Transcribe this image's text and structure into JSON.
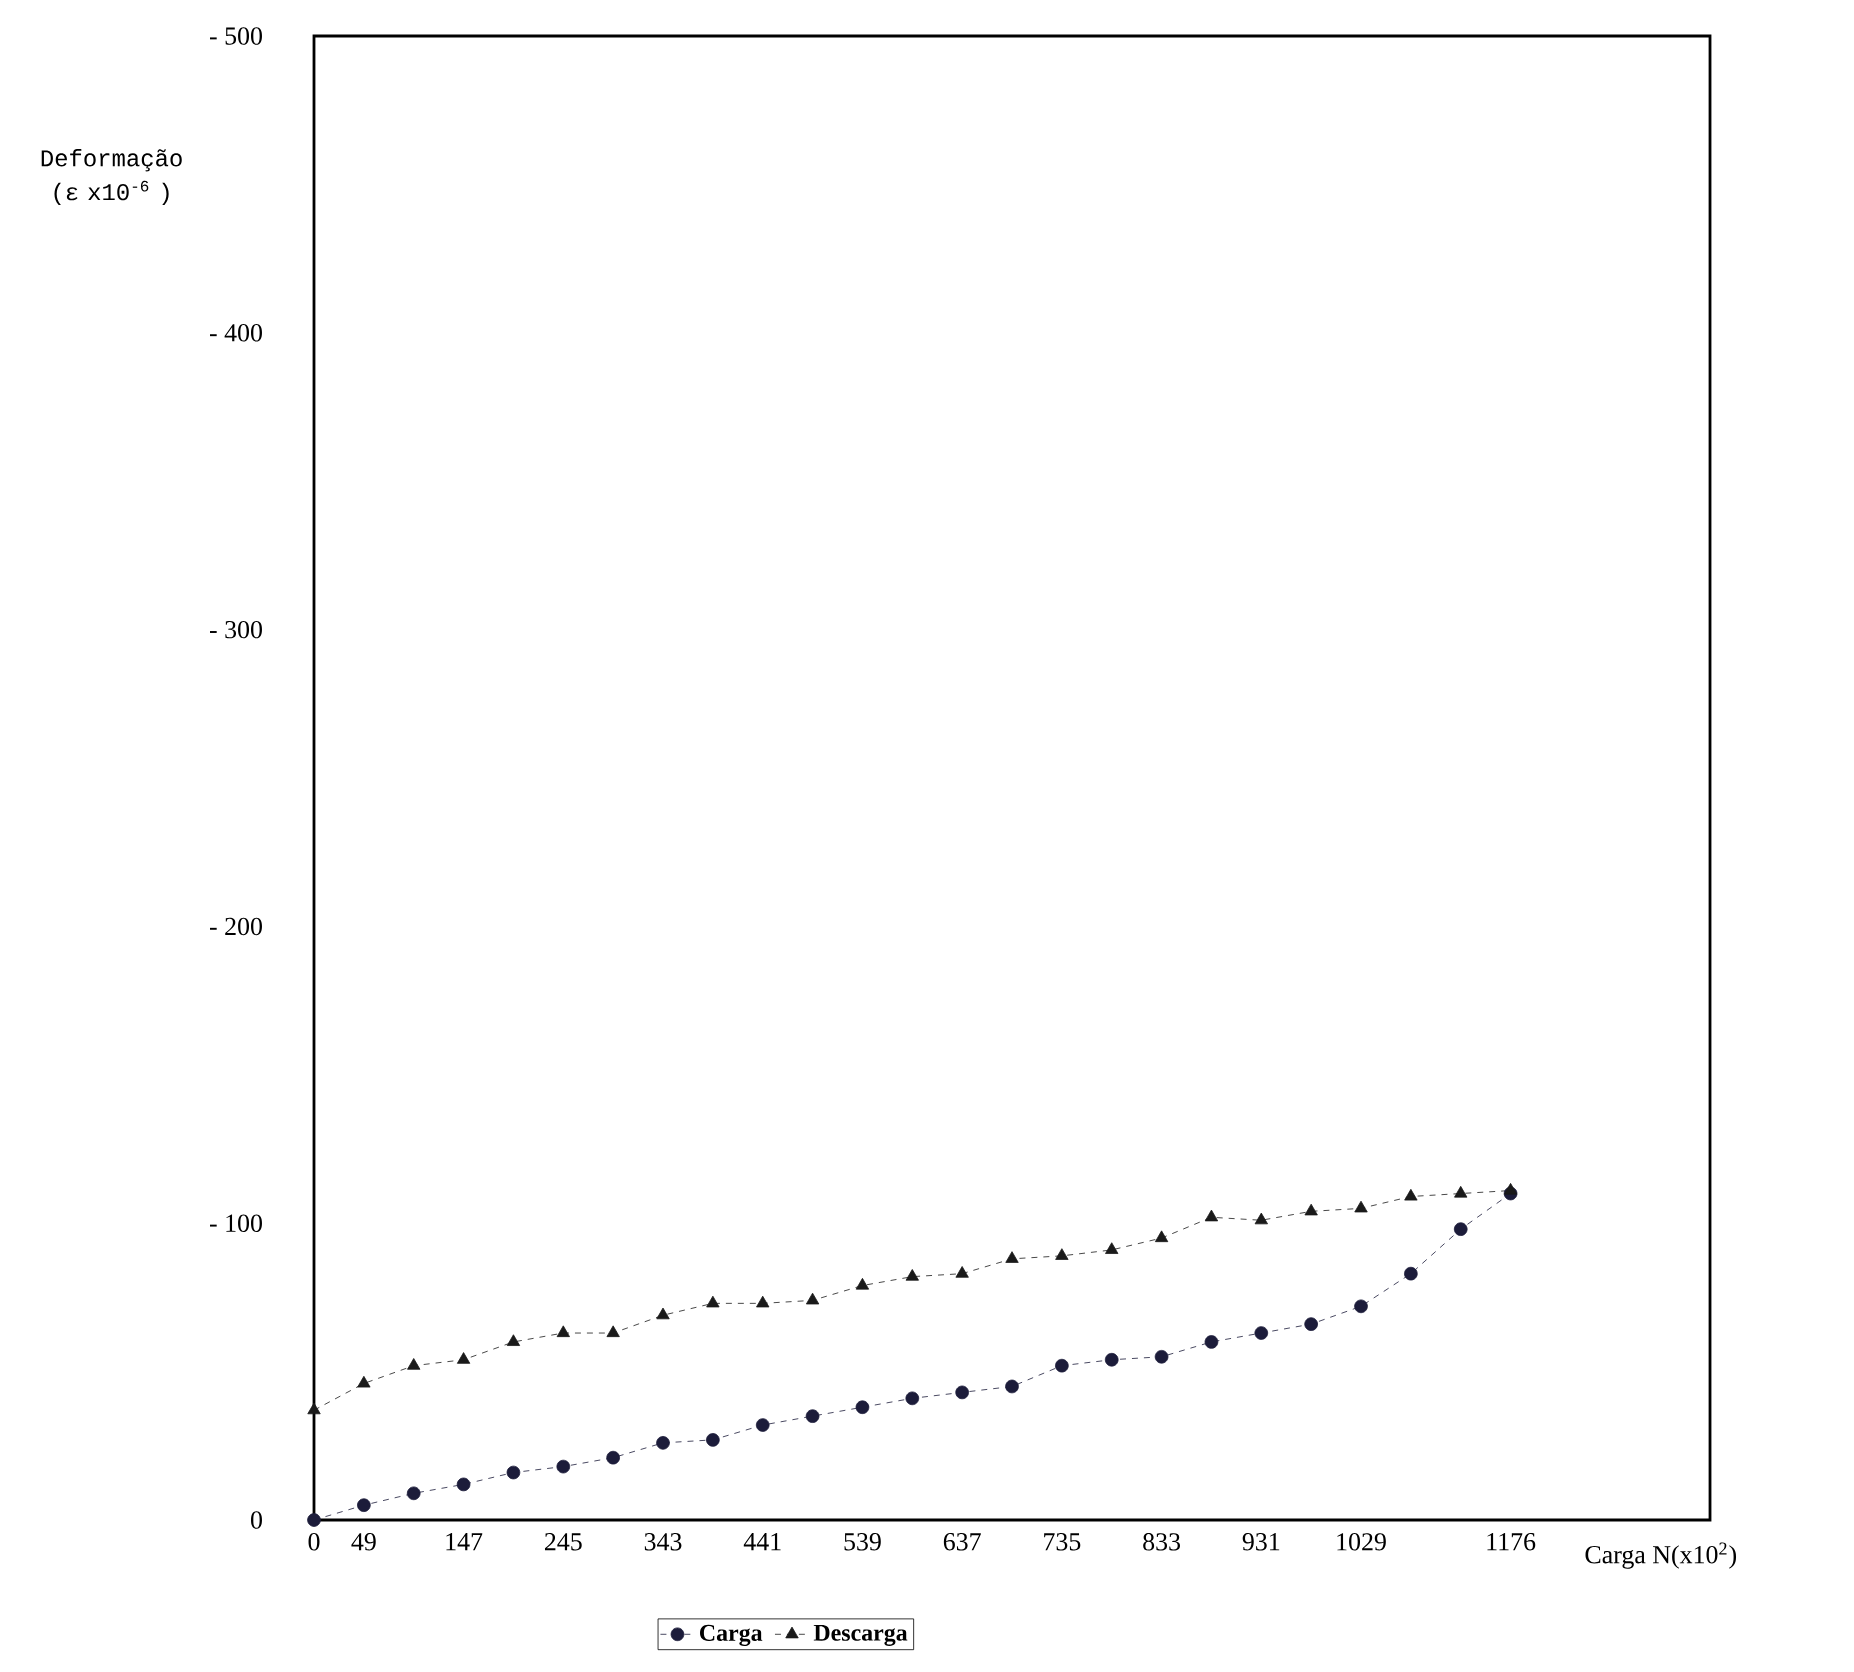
{
  "chart_data": {
    "type": "line",
    "xlabel": "Carga N(x10$^{2}$)",
    "ylabel": "Deformação (ε x10$^{-6}$ )",
    "x": [
      0,
      49,
      98,
      147,
      196,
      245,
      294,
      343,
      392,
      441,
      490,
      539,
      588,
      637,
      686,
      735,
      784,
      833,
      882,
      931,
      980,
      1029,
      1078,
      1127,
      1176
    ],
    "xlim": [
      0,
      1372
    ],
    "xticks": [
      0,
      49,
      147,
      245,
      343,
      441,
      539,
      637,
      735,
      833,
      931,
      1029,
      1176
    ],
    "ylim": [
      0,
      -500
    ],
    "yticks": [
      0,
      {
        "value": -100,
        "label": "- 100"
      },
      {
        "value": -200,
        "label": "- 200"
      },
      {
        "value": -300,
        "label": "- 300"
      },
      {
        "value": -400,
        "label": "- 400"
      },
      {
        "value": -500,
        "label": "- 500"
      }
    ],
    "line_style": "dashed",
    "legend": "bottom",
    "grid": false,
    "series": [
      {
        "name": "Carga",
        "color": "#1c1c3a",
        "marker": "circle",
        "values": [
          0,
          -5,
          -9,
          -12,
          -16,
          -18,
          -21,
          -26,
          -27,
          -32,
          -35,
          -38,
          -41,
          -43,
          -45,
          -52,
          -54,
          -55,
          -60,
          -63,
          -66,
          -72,
          -83,
          -98,
          -110
        ]
      },
      {
        "name": "Descarga",
        "color": "#1a1a1a",
        "marker": "triangle",
        "values": [
          -37,
          -46,
          -52,
          -54,
          -60,
          -63,
          -63,
          -69,
          -73,
          -73,
          -74,
          -79,
          -82,
          -83,
          -88,
          -89,
          -91,
          -95,
          -102,
          -101,
          -104,
          -105,
          -109,
          -110,
          -111
        ]
      }
    ]
  }
}
